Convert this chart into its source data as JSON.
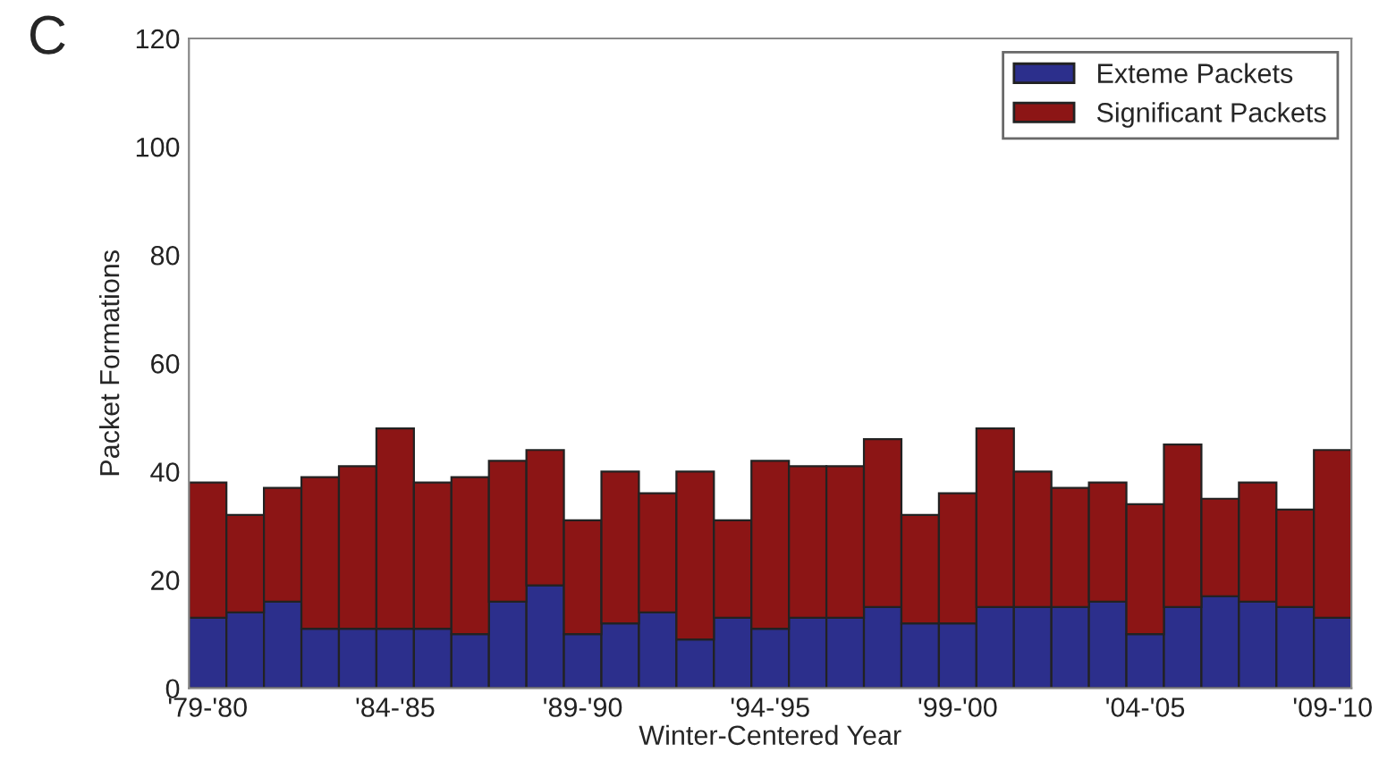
{
  "chart_data": {
    "type": "bar",
    "stacked": true,
    "xlabel": "Winter-Centered Year",
    "ylabel": "Packet Formations",
    "annotations": [
      "C"
    ],
    "categories": [
      "'79-'80",
      null,
      null,
      null,
      null,
      "'84-'85",
      null,
      null,
      null,
      null,
      "'89-'90",
      null,
      null,
      null,
      null,
      "'94-'95",
      null,
      null,
      null,
      null,
      "'99-'00",
      null,
      null,
      null,
      null,
      "'04-'05",
      null,
      null,
      null,
      null,
      "'09-'10"
    ],
    "series": [
      {
        "name": "Exteme Packets",
        "color": "#2c2f8c",
        "values": [
          13,
          14,
          16,
          11,
          11,
          11,
          11,
          10,
          16,
          19,
          10,
          12,
          14,
          9,
          13,
          11,
          13,
          13,
          15,
          12,
          12,
          15,
          15,
          15,
          16,
          10,
          15,
          17,
          16,
          15,
          13
        ]
      },
      {
        "name": "Significant Packets",
        "color": "#8c1515",
        "values": [
          25,
          18,
          21,
          28,
          30,
          37,
          27,
          29,
          26,
          25,
          21,
          28,
          22,
          31,
          18,
          31,
          28,
          28,
          31,
          20,
          24,
          33,
          25,
          22,
          22,
          24,
          30,
          18,
          22,
          18,
          31
        ]
      }
    ],
    "ylim": [
      0,
      120
    ],
    "yticks": [
      0,
      20,
      40,
      60,
      80,
      100,
      120
    ],
    "grid": false,
    "legend": "top right"
  }
}
